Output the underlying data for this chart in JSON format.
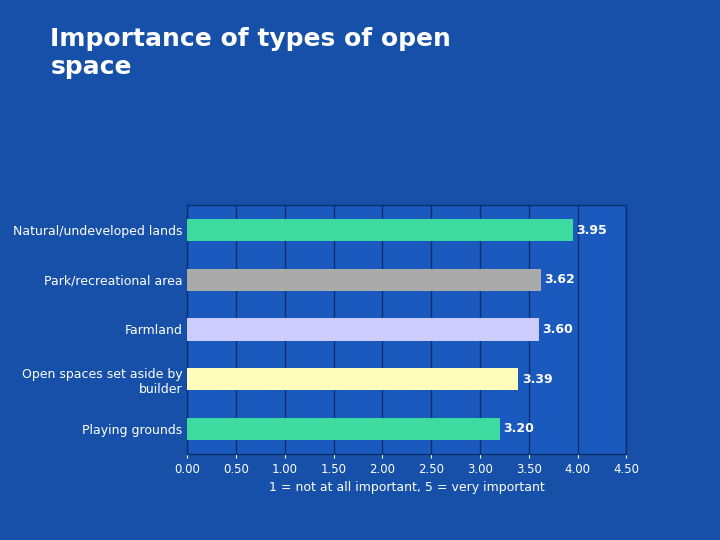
{
  "title": "Importance of types of open\nspace",
  "categories": [
    "Natural/undeveloped lands",
    "Park/recreational area",
    "Farmland",
    "Open spaces set aside by\nbuilder",
    "Playing grounds"
  ],
  "values": [
    3.95,
    3.62,
    3.6,
    3.39,
    3.2
  ],
  "bar_colors": [
    "#3DDBA0",
    "#AAAAAA",
    "#CCCCFF",
    "#FFFFBB",
    "#3DDBA0"
  ],
  "value_labels": [
    "3.95",
    "3.62",
    "3.60",
    "3.39",
    "3.20"
  ],
  "xlim": [
    0,
    4.5
  ],
  "xticks": [
    0.0,
    0.5,
    1.0,
    1.5,
    2.0,
    2.5,
    3.0,
    3.5,
    4.0,
    4.5
  ],
  "xlabel": "1 = not at all important, 5 = very important",
  "bg_color": "#1650A8",
  "plot_bg_color": "#1A5ABE",
  "title_color": "#ffffff",
  "label_color": "#ffffff",
  "value_color": "#ffffff",
  "tick_color": "#ffffff",
  "grid_color": "#0A3070",
  "title_fontsize": 18,
  "label_fontsize": 9,
  "value_fontsize": 9,
  "tick_fontsize": 8.5
}
